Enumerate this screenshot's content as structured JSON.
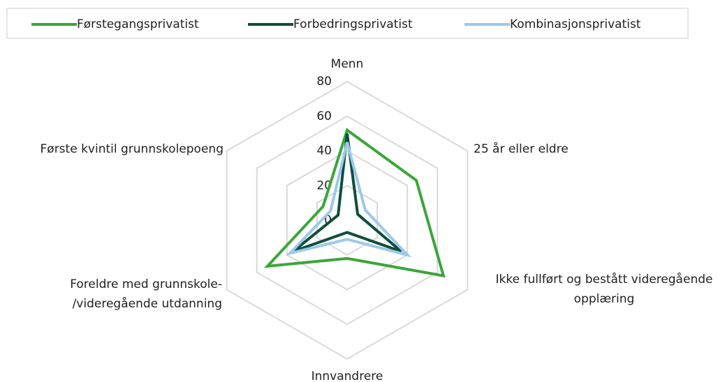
{
  "chart_data": {
    "type": "radar",
    "categories": [
      "Menn",
      "25 år eller eldre",
      "Ikke fullført og bestått videregående\nopplæring",
      "Innvandrere",
      "Foreldre med grunnskole-\n/videregående utdanning",
      "Første kvintil grunnskolepoeng"
    ],
    "series": [
      {
        "name": "Førstegangsprivatist",
        "color": "#3aa63a",
        "values": [
          52,
          46,
          64,
          22,
          53,
          16
        ]
      },
      {
        "name": "Forbedringsprivatist",
        "color": "#0d4f3c",
        "values": [
          50,
          7,
          36,
          7,
          36,
          6
        ]
      },
      {
        "name": "Kombinasjonsprivatist",
        "color": "#9dc8ea",
        "values": [
          45,
          12,
          40,
          11,
          38,
          11
        ]
      }
    ],
    "ylim": [
      0,
      80
    ],
    "yticks": [
      0,
      20,
      40,
      60,
      80
    ],
    "grid": true,
    "legend": "top"
  }
}
